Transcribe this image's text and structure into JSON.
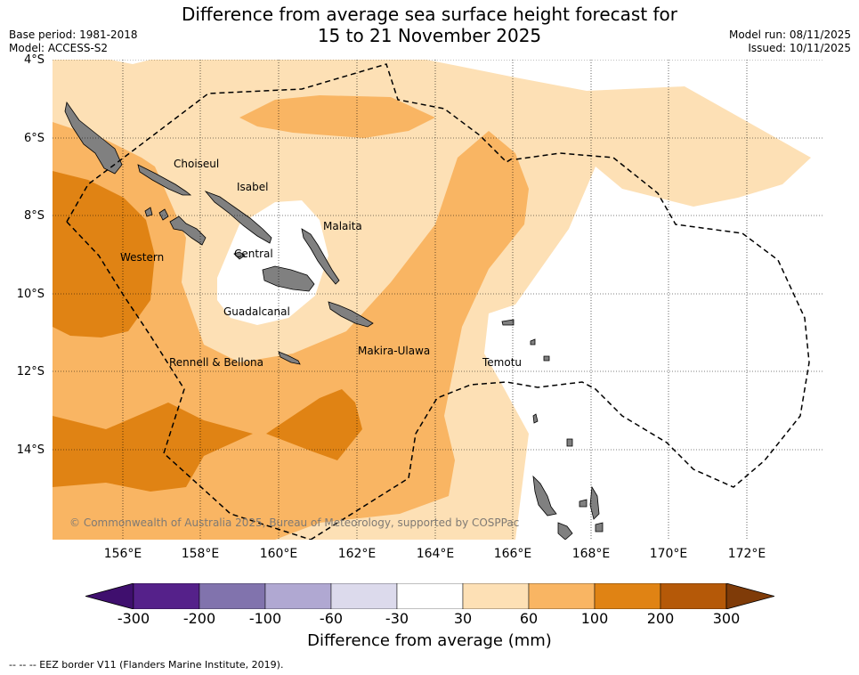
{
  "title_line1": "Difference from average sea surface height forecast for",
  "title_line2": "15 to 21 November 2025",
  "base_period": "Base period: 1981-2018",
  "model": "Model: ACCESS-S2",
  "model_run": "Model run: 08/11/2025",
  "issued": "Issued: 10/11/2025",
  "lat_labels": [
    "4°S",
    "6°S",
    "8°S",
    "10°S",
    "12°S",
    "14°S"
  ],
  "lon_labels": [
    "156°E",
    "158°E",
    "160°E",
    "162°E",
    "164°E",
    "166°E",
    "168°E",
    "170°E",
    "172°E"
  ],
  "places": {
    "choiseul": "Choiseul",
    "isabel": "Isabel",
    "malaita": "Malaita",
    "western": "Western",
    "central": "Central",
    "guadalcanal": "Guadalcanal",
    "makira": "Makira-Ulawa",
    "rennell": "Rennell & Bellona",
    "temotu": "Temotu"
  },
  "copyright": "© Commonwealth of Australia 2025, Bureau of Meteorology, supported by COSPPac",
  "colorbar": {
    "ticks": [
      "-300",
      "-200",
      "-100",
      "-60",
      "-30",
      "30",
      "60",
      "100",
      "200",
      "300"
    ],
    "colors": [
      "#4d1a80",
      "#55218a",
      "#8173ad",
      "#b0a8d2",
      "#dcdaec",
      "#ffffff",
      "#fde0b5",
      "#f9b563",
      "#e08314",
      "#b55908",
      "#7f3b08"
    ],
    "title": "Difference from average (mm)"
  },
  "footer": "--  --  -- EEZ border V11 (Flanders Marine Institute, 2019)."
}
